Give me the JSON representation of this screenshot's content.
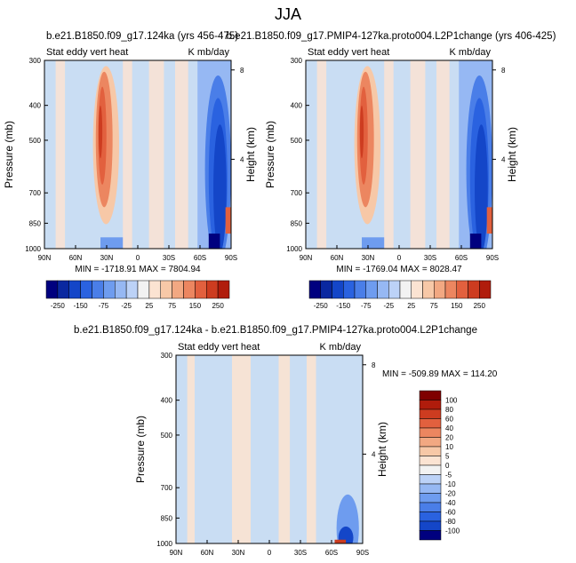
{
  "page_title": "JJA",
  "colors": {
    "bg": "#c9ddf3",
    "neg_scale": [
      "#00007f",
      "#0a28a0",
      "#1446c8",
      "#2a62e0",
      "#4a7ee8",
      "#6e9cef",
      "#96b8f3",
      "#bcd2f7"
    ],
    "pos_scale": [
      "#fbe3d2",
      "#f7c8a7",
      "#f2a882",
      "#ec8660",
      "#e2603e",
      "#cd3c20",
      "#b01c0c",
      "#7f0000"
    ],
    "mid": "#f2f2f2"
  },
  "chart_data": [
    {
      "type": "heatmap",
      "panel": "top-left",
      "title": "b.e21.B1850.f09_g17.124ka (yrs 456-475)",
      "left_label": "Stat eddy vert heat",
      "right_label": "K mb/day",
      "ylabel": "Pressure (mb)",
      "ylabel_right": "Height (km)",
      "x_ticks": [
        "90N",
        "60N",
        "30N",
        "0",
        "30S",
        "60S",
        "90S"
      ],
      "y_ticks": [
        "300",
        "400",
        "500",
        "700",
        "850",
        "1000"
      ],
      "y_ticks_right": [
        "8",
        "4"
      ],
      "stats": "MIN = -1718.91   MAX = 7804.94",
      "colorbar_labels": [
        "-250",
        "-150",
        "-75",
        "-25",
        "25",
        "75",
        "150",
        "250"
      ]
    },
    {
      "type": "heatmap",
      "panel": "top-right",
      "title": "b.e21.B1850.f09_g17.PMIP4-127ka.proto004.L2P1change (yrs 406-425)",
      "left_label": "Stat eddy vert heat",
      "right_label": "K mb/day",
      "ylabel": "Pressure (mb)",
      "ylabel_right": "Height (km)",
      "x_ticks": [
        "90N",
        "60N",
        "30N",
        "0",
        "30S",
        "60S",
        "90S"
      ],
      "y_ticks": [
        "300",
        "400",
        "500",
        "700",
        "850",
        "1000"
      ],
      "y_ticks_right": [
        "8",
        "4"
      ],
      "stats": "MIN = -1769.04   MAX = 8028.47",
      "colorbar_labels": [
        "-250",
        "-150",
        "-75",
        "-25",
        "25",
        "75",
        "150",
        "250"
      ]
    },
    {
      "type": "heatmap",
      "panel": "bottom-difference",
      "title": "b.e21.B1850.f09_g17.124ka - b.e21.B1850.f09_g17.PMIP4-127ka.proto004.L2P1change",
      "left_label": "Stat eddy vert heat",
      "right_label": "K mb/day",
      "ylabel": "Pressure (mb)",
      "ylabel_right": "Height (km)",
      "x_ticks": [
        "90N",
        "60N",
        "30N",
        "0",
        "30S",
        "60S",
        "90S"
      ],
      "y_ticks": [
        "300",
        "400",
        "500",
        "700",
        "850",
        "1000"
      ],
      "y_ticks_right": [
        "8",
        "4"
      ],
      "stats": "MIN = -509.89   MAX = 114.20",
      "colorbar_labels": [
        "100",
        "80",
        "60",
        "40",
        "20",
        "10",
        "5",
        "0",
        "-5",
        "-10",
        "-20",
        "-40",
        "-60",
        "-80",
        "-100"
      ]
    }
  ]
}
